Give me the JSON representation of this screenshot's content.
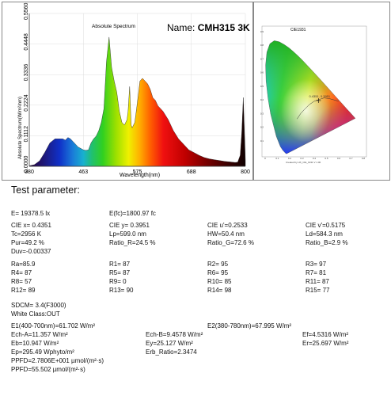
{
  "spectrum_panel": {
    "title": "Absolute Spectrum",
    "name_label": "Name:",
    "name_value": "CMH315 3K"
  },
  "chart_data": [
    {
      "type": "area",
      "title": "Absolute Spectrum",
      "xlabel": "Wavelength(nm)",
      "ylabel": "Absolute Spectrum(W/m²/nm)",
      "xlim": [
        380,
        800
      ],
      "ylim": [
        0,
        0.556
      ],
      "x_ticks": [
        "380",
        "463",
        "575",
        "688",
        "800"
      ],
      "y_ticks": [
        "0.0000",
        "0.1112",
        "0.2224",
        "0.3336",
        "0.4448",
        "0.5560"
      ],
      "fill": "visible-spectrum gradient",
      "x": [
        380,
        390,
        400,
        410,
        420,
        430,
        440,
        445,
        450,
        455,
        460,
        465,
        470,
        475,
        480,
        485,
        490,
        495,
        500,
        505,
        510,
        515,
        520,
        525,
        530,
        535,
        540,
        545,
        550,
        555,
        560,
        565,
        570,
        572,
        575,
        578,
        580,
        585,
        590,
        595,
        600,
        605,
        610,
        615,
        620,
        625,
        630,
        635,
        640,
        650,
        660,
        670,
        680,
        690,
        700,
        710,
        720,
        730,
        740,
        750,
        760,
        770,
        780,
        785,
        790,
        793,
        796,
        800
      ],
      "y": [
        0.002,
        0.006,
        0.02,
        0.05,
        0.085,
        0.1,
        0.1,
        0.1,
        0.095,
        0.105,
        0.1,
        0.09,
        0.08,
        0.07,
        0.065,
        0.06,
        0.058,
        0.06,
        0.085,
        0.1,
        0.11,
        0.13,
        0.16,
        0.21,
        0.38,
        0.47,
        0.36,
        0.31,
        0.27,
        0.2,
        0.16,
        0.15,
        0.17,
        0.2,
        0.29,
        0.15,
        0.14,
        0.16,
        0.23,
        0.31,
        0.32,
        0.31,
        0.3,
        0.28,
        0.25,
        0.24,
        0.22,
        0.21,
        0.2,
        0.17,
        0.13,
        0.1,
        0.08,
        0.06,
        0.05,
        0.04,
        0.032,
        0.027,
        0.024,
        0.021,
        0.018,
        0.016,
        0.014,
        0.015,
        0.04,
        0.12,
        0.25,
        0.02
      ]
    },
    {
      "type": "scatter",
      "title": "CIE1931",
      "xlabel": "",
      "ylabel": "",
      "x_ticks": [
        "0",
        "0.1",
        "0.2",
        "0.3",
        "0.4",
        "0.5",
        "0.6",
        "0.7",
        "0.8"
      ],
      "y_ticks": [
        "0.9",
        "0.8",
        "0.7",
        "0.6",
        "0.5",
        "0.4",
        "0.3",
        "0.2",
        "0.1"
      ],
      "point": {
        "x": 0.4351,
        "y": 0.3951
      },
      "point_label": "0.4351, 0.3951",
      "footer": "Created by HX_CIE_1931 V 1.00"
    }
  ],
  "params": {
    "heading": "Test parameter:",
    "rows": [
      [
        "E=  19378.5 lx",
        "E(fc)=1800.97 fc",
        "",
        ""
      ],
      [
        "CIE x= 0.4351",
        "CIE y= 0.3951",
        "CIE u'=0.2533",
        "CIE v'=0.5175"
      ],
      [
        "Tc=2956 K",
        "Lp=599.0 nm",
        "HW=50.4 nm",
        "Ld=584.3 nm"
      ],
      [
        "Pur=49.2 %",
        "Ratio_R=24.5 %",
        "Ratio_G=72.6 %",
        "Ratio_B=2.9 %"
      ],
      [
        "Duv=-0.00337",
        "",
        "",
        ""
      ],
      [
        "Ra=85.9",
        "R1= 87",
        "R2= 95",
        "R3= 97"
      ],
      [
        "R4= 87",
        "R5= 87",
        "R6= 95",
        "R7= 81"
      ],
      [
        "R8= 57",
        "R9=  0",
        "R10= 85",
        "R11= 87"
      ],
      [
        "R12= 89",
        "R13= 90",
        "R14= 98",
        "R15= 77"
      ]
    ],
    "sdcm": "SDCM= 3.4(F3000)",
    "white_class": "White Class:OUT",
    "e1": "E1(400-700nm)=61.702 W/m²",
    "e2": "E2(380-780nm)=67.995 W/m²",
    "ech_a": "Ech-A=11.357 W/m²",
    "ech_b": "Ech-B=9.4578 W/m²",
    "ef": "Ef=4.5316 W/m²",
    "eb": "Eb=10.947 W/m²",
    "ey": "Ey=25.127 W/m²",
    "er": "Er=25.697 W/m²",
    "ep": "Ep=295.49 Wphyto/m²",
    "erb": "Erb_Ratio=2.3474",
    "ppfd_e": "PPFD=2.7806E+001 µmol/(m²·s)",
    "ppfd": "PPFD=55.502 µmol/(m²·s)"
  }
}
